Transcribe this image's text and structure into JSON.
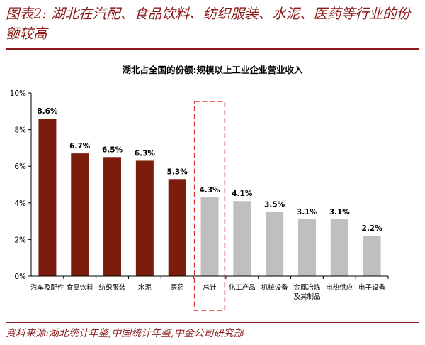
{
  "figure_title": "图表2: 湖北在汽配、食品饮料、纺织服装、水泥、医药等行业的份额较高",
  "source": "资料来源:湖北统计年鉴,中国统计年鉴,中金公司研究部",
  "colors": {
    "accent": "#8b1a1a",
    "highlight_bar": "#7b1c0d",
    "other_bar": "#bfbfbf",
    "total_box": "#e03030"
  },
  "chart_data": {
    "type": "bar",
    "title": "湖北占全国的份额:规模以上工业企业营业收入",
    "xlabel": "",
    "ylabel": "",
    "ylim": [
      0,
      10
    ],
    "yticks": [
      "0%",
      "2%",
      "4%",
      "6%",
      "8%",
      "10%"
    ],
    "categories": [
      "汽车及配件",
      "食品饮料",
      "纺织服装",
      "水泥",
      "医药",
      "总计",
      "化工产品",
      "机械设备",
      "金属冶炼及其制品",
      "电热供应",
      "电子设备"
    ],
    "category_lines": [
      [
        "汽车及配件"
      ],
      [
        "食品饮料"
      ],
      [
        "纺织服装"
      ],
      [
        "水泥"
      ],
      [
        "医药"
      ],
      [
        "总计"
      ],
      [
        "化工产品"
      ],
      [
        "机械设备"
      ],
      [
        "金属冶炼",
        "及其制品"
      ],
      [
        "电热供应"
      ],
      [
        "电子设备"
      ]
    ],
    "values": [
      8.6,
      6.7,
      6.5,
      6.3,
      5.3,
      4.3,
      4.1,
      3.5,
      3.1,
      3.1,
      2.2
    ],
    "value_labels": [
      "8.6%",
      "6.7%",
      "6.5%",
      "6.3%",
      "5.3%",
      "4.3%",
      "4.1%",
      "3.5%",
      "3.1%",
      "3.1%",
      "2.2%"
    ],
    "highlighted_count": 5,
    "total_index": 5,
    "grid": false,
    "legend": "none"
  }
}
